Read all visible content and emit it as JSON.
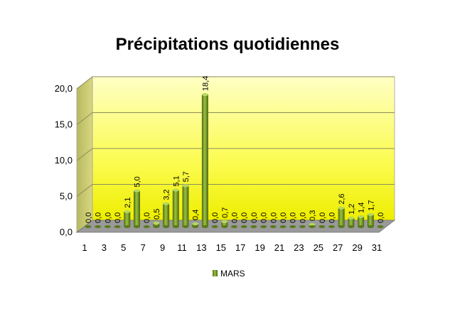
{
  "chart_data": {
    "type": "bar",
    "title": "Précipitations quotidiennes",
    "xlabel": "",
    "ylabel": "",
    "ylim": [
      0,
      20
    ],
    "ytick_values": [
      0,
      5,
      10,
      15,
      20
    ],
    "ytick_labels": [
      "0,0",
      "5,0",
      "10,0",
      "15,0",
      "20,0"
    ],
    "categories": [
      1,
      2,
      3,
      4,
      5,
      6,
      7,
      8,
      9,
      10,
      11,
      12,
      13,
      14,
      15,
      16,
      17,
      18,
      19,
      20,
      21,
      22,
      23,
      24,
      25,
      26,
      27,
      28,
      29,
      30,
      31
    ],
    "xtick_labels": [
      "1",
      "3",
      "5",
      "7",
      "9",
      "11",
      "13",
      "15",
      "17",
      "19",
      "21",
      "23",
      "25",
      "27",
      "29",
      "31"
    ],
    "series": [
      {
        "name": "MARS",
        "values": [
          0.0,
          0.0,
          0.0,
          0.0,
          2.1,
          5.0,
          0.0,
          0.5,
          3.2,
          5.1,
          5.7,
          0.4,
          18.4,
          0.0,
          0.7,
          0.0,
          0.0,
          0.0,
          0.0,
          0.0,
          0.0,
          0.0,
          0.0,
          0.3,
          0.0,
          0.0,
          2.6,
          1.2,
          1.4,
          1.7,
          0.0
        ],
        "labels": [
          "0,0",
          "0,0",
          "0,0",
          "0,0",
          "2,1",
          "5,0",
          "0,0",
          "0,5",
          "3,2",
          "5,1",
          "5,7",
          "0,4",
          "18,4",
          "0,0",
          "0,7",
          "0,0",
          "0,0",
          "0,0",
          "0,0",
          "0,0",
          "0,0",
          "0,0",
          "0,0",
          "0,3",
          "0,0",
          "0,0",
          "2,6",
          "1,2",
          "1,4",
          "1,7",
          "0,0"
        ],
        "color": "#6b8e23"
      }
    ],
    "legend": {
      "position": "bottom",
      "entries": [
        "MARS"
      ]
    },
    "grid": true,
    "colors": {
      "wall_top": "#ffffb0",
      "wall_bottom": "#f2f200",
      "bar": "#6b8e23",
      "floor": "#808080"
    }
  }
}
